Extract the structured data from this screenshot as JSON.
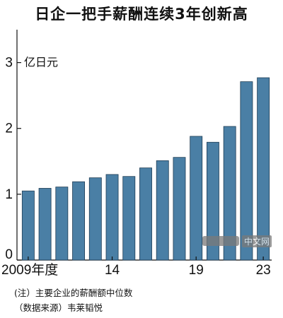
{
  "chart_data": {
    "type": "bar",
    "title": "日企一把手薪酬连续3年创新高",
    "ylabel": "亿日元",
    "ylim": [
      0,
      3.5
    ],
    "yticks": [
      0,
      1,
      2,
      3
    ],
    "categories": [
      "2009",
      "2010",
      "2011",
      "2012",
      "2013",
      "2014",
      "2015",
      "2016",
      "2017",
      "2018",
      "2019",
      "2020",
      "2021",
      "2022",
      "2023"
    ],
    "xtick_labels": [
      {
        "category": "2009",
        "label": "2009年度"
      },
      {
        "category": "2014",
        "label": "14"
      },
      {
        "category": "2019",
        "label": "19"
      },
      {
        "category": "2023",
        "label": "23"
      }
    ],
    "values": [
      1.05,
      1.09,
      1.11,
      1.19,
      1.25,
      1.3,
      1.27,
      1.4,
      1.51,
      1.56,
      1.88,
      1.79,
      2.03,
      2.71,
      2.77
    ],
    "bar_color": "#4a7fa5",
    "bar_edge_color": "#1f3d55",
    "grid": false
  },
  "notes": [
    "(注）主要企业的薪酬额中位数",
    "（数据来源）韦莱韬悦"
  ],
  "watermark": {
    "text": "中文网"
  }
}
